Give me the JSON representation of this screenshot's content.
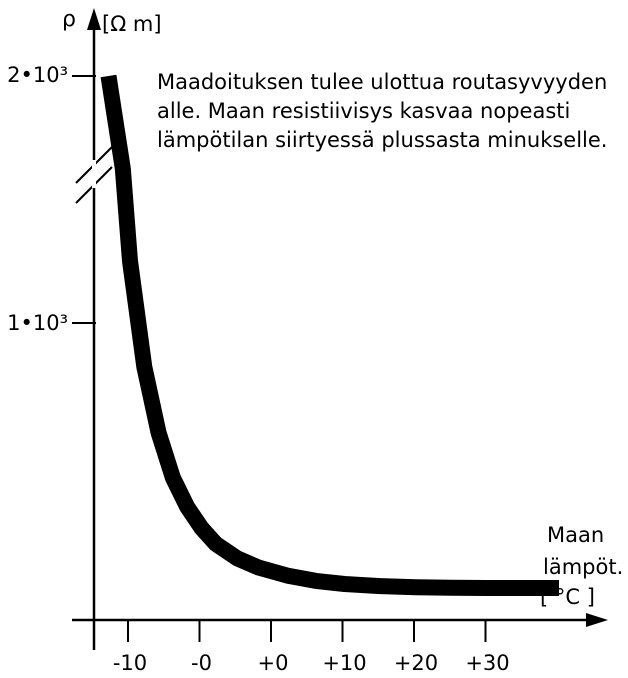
{
  "chart_data": {
    "type": "line",
    "y_axis": {
      "symbol": "ρ",
      "unit": "[Ω m]",
      "tick_labels": [
        "2•10³",
        "1•10³"
      ],
      "ticks": [
        2000,
        1000
      ],
      "axis_break": true
    },
    "x_axis": {
      "label_line1": "Maan",
      "label_line2": "lämpöt.",
      "unit": "[ °C ]",
      "tick_labels": [
        "-10",
        "-0",
        "+0",
        "+10",
        "+20",
        "+30"
      ]
    },
    "annotation": [
      "Maadoituksen tulee ulottua routasyvyyden",
      "alle. Maan resistiivisys kasvaa nopeasti",
      "lämpötilan siirtyessä plussasta minukselle."
    ],
    "series": [
      {
        "x_tick_index": [
          -0.3,
          -0.1,
          0.0,
          0.2,
          0.4,
          0.6,
          0.8,
          1.0,
          1.2,
          1.5,
          1.8,
          2.2,
          2.6,
          3.0,
          3.5,
          4.0,
          4.5,
          5.0,
          5.5,
          6.0
        ],
        "y": [
          2000,
          1650,
          1300,
          900,
          650,
          480,
          370,
          290,
          230,
          175,
          140,
          110,
          90,
          78,
          70,
          66,
          64,
          63,
          63,
          63
        ]
      }
    ]
  }
}
